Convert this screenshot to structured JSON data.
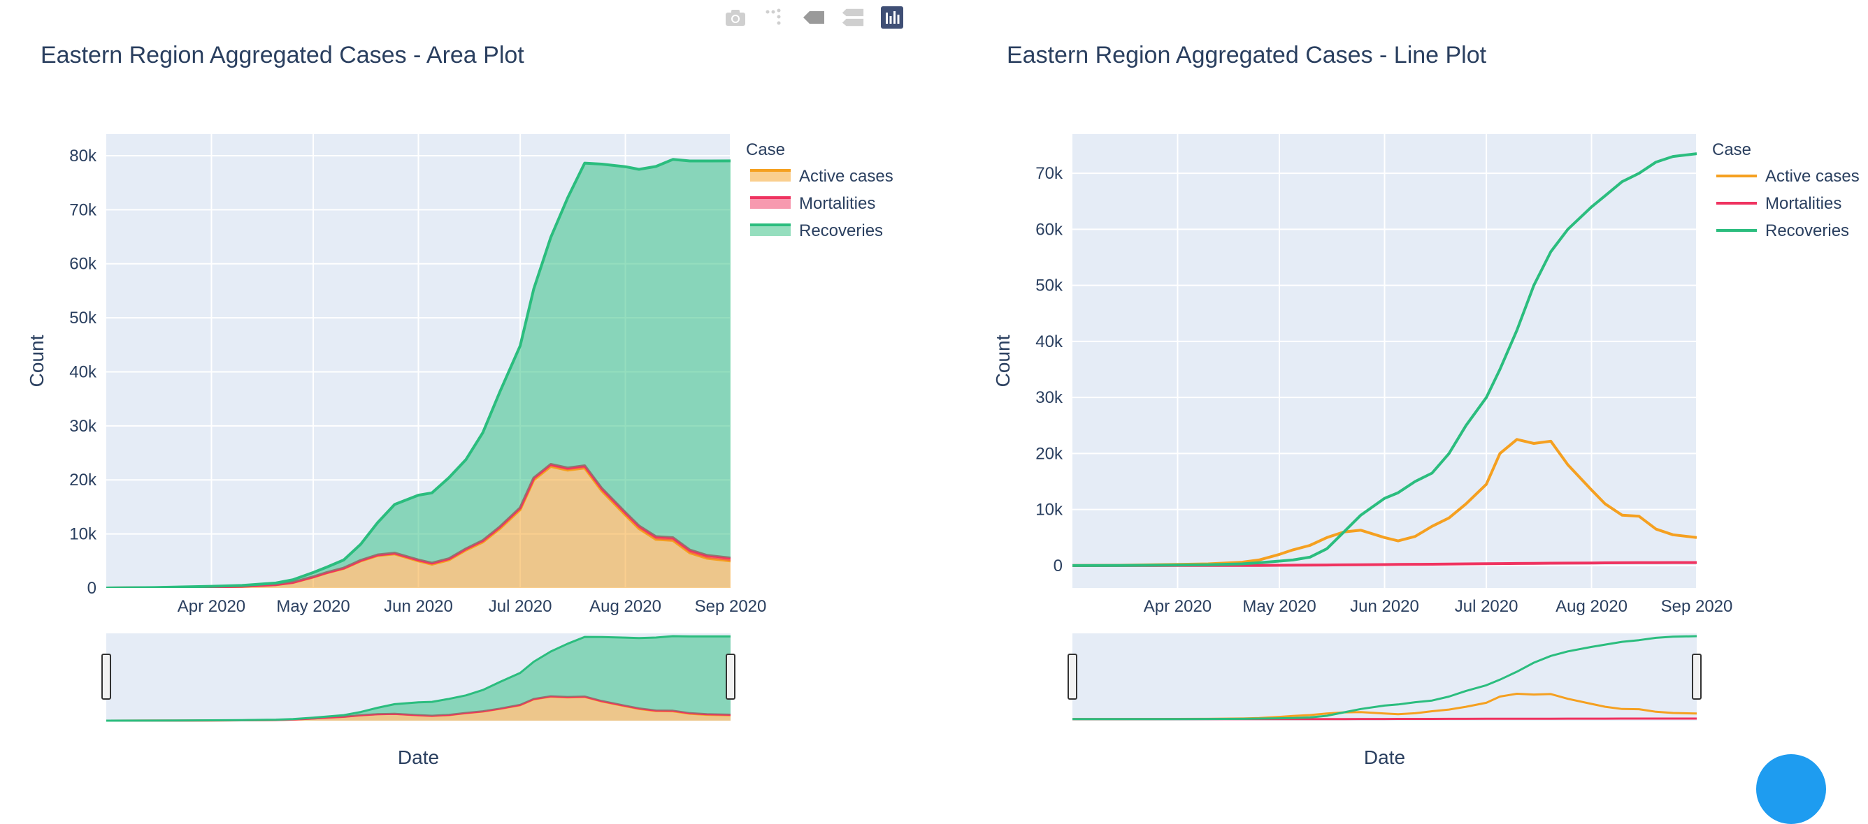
{
  "modebar": {
    "icons": [
      "camera-icon",
      "zoom-icon",
      "pan-icon",
      "compare-icon",
      "plotly-logo-icon"
    ]
  },
  "colors": {
    "active": "#f5a020",
    "mortalities": "#ef3360",
    "recoveries": "#2bbd7e",
    "plot_bg": "#e5ecf6",
    "grid": "#ffffff",
    "text": "#2a3f5f"
  },
  "chart_data": [
    {
      "type": "area",
      "title": "Eastern Region Aggregated Cases - Area Plot",
      "xlabel": "Date",
      "ylabel": "Count",
      "x_range": [
        "2020-03-01",
        "2020-09-01"
      ],
      "ylim": [
        0,
        84000
      ],
      "y_ticks": [
        0,
        10000,
        20000,
        30000,
        40000,
        50000,
        60000,
        70000,
        80000
      ],
      "y_tick_labels": [
        "0",
        "10k",
        "20k",
        "30k",
        "40k",
        "50k",
        "60k",
        "70k",
        "80k"
      ],
      "x_ticks": [
        "2020-04-01",
        "2020-05-01",
        "2020-06-01",
        "2020-07-01",
        "2020-08-01",
        "2020-09-01"
      ],
      "x_tick_labels": [
        "Apr 2020",
        "May 2020",
        "Jun 2020",
        "Jul 2020",
        "Aug 2020",
        "Sep 2020"
      ],
      "stacked": true,
      "legend": {
        "title": "Case",
        "position": "right",
        "entries": [
          "Active cases",
          "Mortalities",
          "Recoveries"
        ]
      },
      "rangeslider": true,
      "grid": true
    },
    {
      "type": "line",
      "title": "Eastern Region Aggregated Cases - Line Plot",
      "xlabel": "Date",
      "ylabel": "Count",
      "x_range": [
        "2020-03-01",
        "2020-09-01"
      ],
      "ylim": [
        -4000,
        77000
      ],
      "y_ticks": [
        0,
        10000,
        20000,
        30000,
        40000,
        50000,
        60000,
        70000
      ],
      "y_tick_labels": [
        "0",
        "10k",
        "20k",
        "30k",
        "40k",
        "50k",
        "60k",
        "70k"
      ],
      "x_ticks": [
        "2020-04-01",
        "2020-05-01",
        "2020-06-01",
        "2020-07-01",
        "2020-08-01",
        "2020-09-01"
      ],
      "x_tick_labels": [
        "Apr 2020",
        "May 2020",
        "Jun 2020",
        "Jul 2020",
        "Aug 2020",
        "Sep 2020"
      ],
      "stacked": false,
      "legend": {
        "title": "Case",
        "position": "right",
        "entries": [
          "Active cases",
          "Mortalities",
          "Recoveries"
        ]
      },
      "rangeslider": true,
      "grid": true
    }
  ],
  "series": {
    "x": [
      "2020-03-01",
      "2020-03-15",
      "2020-04-01",
      "2020-04-10",
      "2020-04-20",
      "2020-04-25",
      "2020-05-01",
      "2020-05-05",
      "2020-05-10",
      "2020-05-15",
      "2020-05-20",
      "2020-05-25",
      "2020-06-01",
      "2020-06-05",
      "2020-06-10",
      "2020-06-15",
      "2020-06-20",
      "2020-06-25",
      "2020-07-01",
      "2020-07-05",
      "2020-07-10",
      "2020-07-15",
      "2020-07-20",
      "2020-07-25",
      "2020-08-01",
      "2020-08-05",
      "2020-08-10",
      "2020-08-15",
      "2020-08-20",
      "2020-08-25",
      "2020-09-01"
    ],
    "active": [
      0,
      50,
      200,
      300,
      600,
      1000,
      2000,
      2800,
      3600,
      5000,
      6000,
      6300,
      5000,
      4400,
      5200,
      7000,
      8500,
      11000,
      14500,
      20000,
      22500,
      21800,
      22200,
      18000,
      13500,
      11000,
      9000,
      8800,
      6500,
      5500,
      5000
    ],
    "mortalities": [
      0,
      5,
      10,
      15,
      20,
      30,
      50,
      60,
      80,
      100,
      120,
      150,
      180,
      200,
      220,
      240,
      270,
      300,
      330,
      350,
      380,
      400,
      420,
      440,
      460,
      480,
      500,
      510,
      520,
      530,
      540
    ],
    "recoveries": [
      0,
      20,
      100,
      150,
      300,
      500,
      800,
      1000,
      1500,
      3000,
      6000,
      9000,
      12000,
      13000,
      15000,
      16500,
      20000,
      25000,
      30000,
      35000,
      42000,
      50000,
      56000,
      60000,
      64000,
      66000,
      68500,
      70000,
      72000,
      73000,
      73500
    ]
  }
}
